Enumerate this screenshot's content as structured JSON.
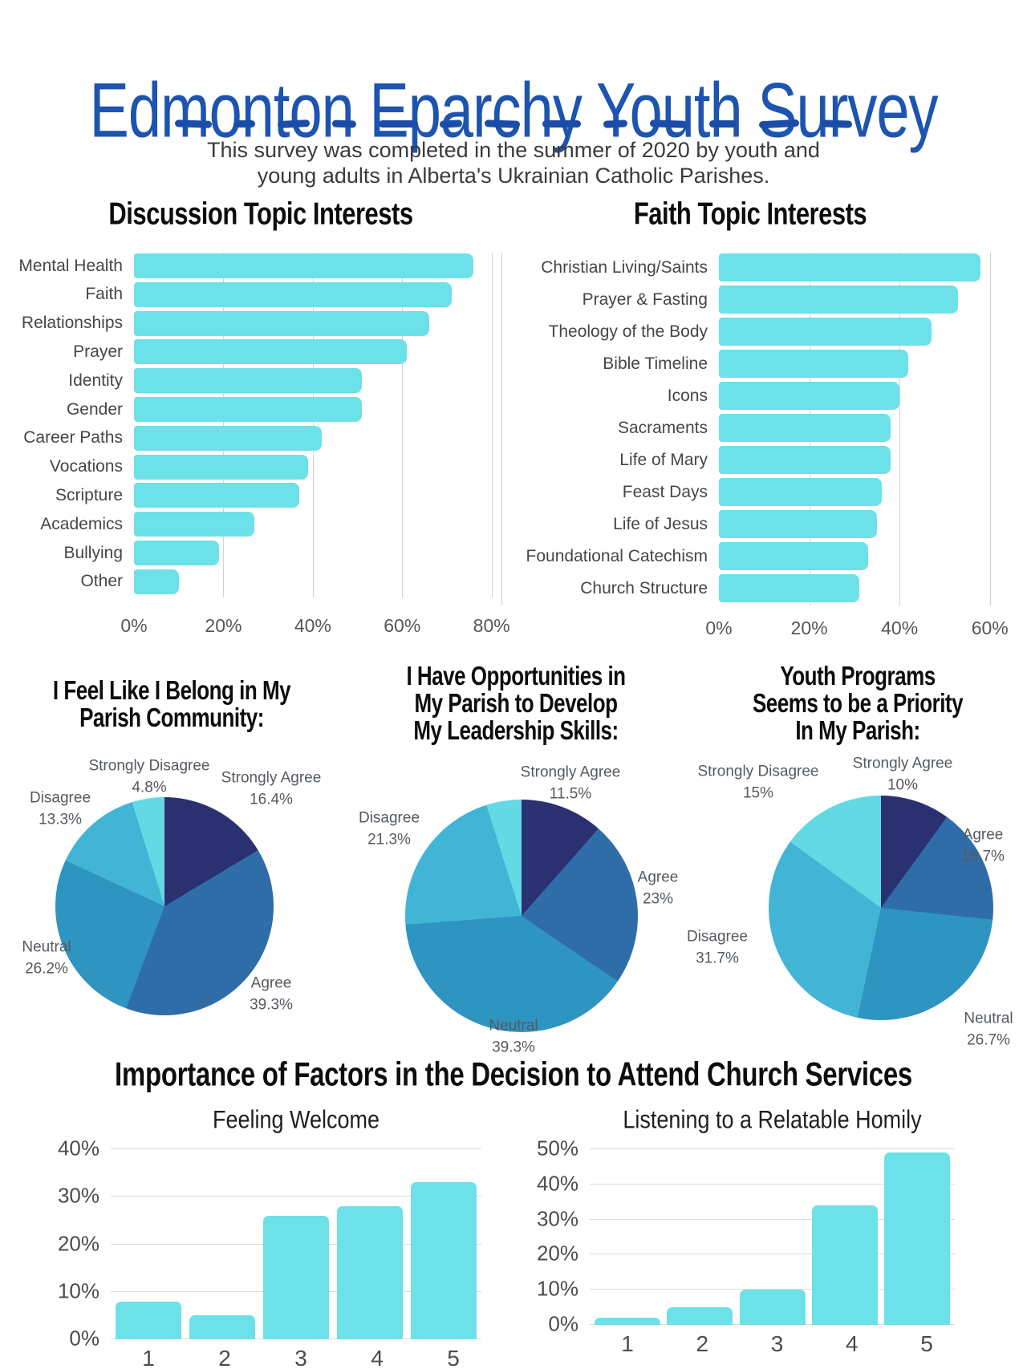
{
  "header": {
    "title": "Edmonton Eparchy Youth Survey",
    "subtitle_lines": [
      "This survey was completed in the summer of 2020 by youth and",
      "young adults in Alberta's Ukrainian Catholic Parishes."
    ]
  },
  "bottom_section_heading": "Importance of Factors in the Decision to Attend Church Services",
  "colors": {
    "title_blue": "#1d54b0",
    "dash_blue": "#1b4da8",
    "bar_teal": "#6ce1e7",
    "gridline": "#d2d2d2",
    "pie_palette": {
      "strongly_agree": "#2b3170",
      "agree": "#2f6da8",
      "neutral": "#2e94c0",
      "disagree": "#42b5d7",
      "strongly_disagree": "#63dae3"
    }
  },
  "chart_data": [
    {
      "type": "bar",
      "orientation": "horizontal",
      "title": "Discussion Topic Interests",
      "unit": "%",
      "categories": [
        "Mental Health",
        "Faith",
        "Relationships",
        "Prayer",
        "Identity",
        "Gender",
        "Career Paths",
        "Vocations",
        "Scripture",
        "Academics",
        "Bullying",
        "Other"
      ],
      "values": [
        76,
        71,
        66,
        61,
        51,
        51,
        42,
        39,
        37,
        27,
        19,
        10
      ],
      "axis_max": 84,
      "axis_ticks": [
        {
          "label": "0%",
          "value": 0
        },
        {
          "label": "20%",
          "value": 20
        },
        {
          "label": "40%",
          "value": 40
        },
        {
          "label": "60%",
          "value": 60
        },
        {
          "label": "80%",
          "value": 80
        }
      ],
      "grid": true,
      "legend": "none"
    },
    {
      "type": "bar",
      "orientation": "horizontal",
      "title": "Faith Topic Interests",
      "unit": "%",
      "categories": [
        "Christian Living/Saints",
        "Prayer & Fasting",
        "Theology of the Body",
        "Bible Timeline",
        "Icons",
        "Sacraments",
        "Life of Mary",
        "Feast Days",
        "Life of Jesus",
        "Foundational Catechism",
        "Church Structure"
      ],
      "values": [
        58,
        53,
        47,
        42,
        40,
        38,
        38,
        36,
        35,
        33,
        31
      ],
      "axis_max": 62,
      "axis_ticks": [
        {
          "label": "0%",
          "value": 0
        },
        {
          "label": "20%",
          "value": 20
        },
        {
          "label": "40%",
          "value": 40
        },
        {
          "label": "60%",
          "value": 60
        }
      ],
      "grid": true,
      "legend": "none"
    },
    {
      "type": "pie",
      "title_lines": [
        "I Feel Like I Belong in My",
        "Parish Community:"
      ],
      "slices": [
        {
          "label": "Strongly Agree",
          "display": "16.4%",
          "value": 16.4,
          "color": "strongly_agree",
          "show_label": true,
          "label_offset": [
            133,
            -146
          ]
        },
        {
          "label": "Agree",
          "display": "39.3%",
          "value": 39.3,
          "color": "agree",
          "show_label": true,
          "label_offset": [
            133,
            110
          ]
        },
        {
          "label": "Neutral",
          "display": "26.2%",
          "value": 26.2,
          "color": "neutral",
          "show_label": true,
          "label_offset": [
            -147,
            65
          ]
        },
        {
          "label": "Disagree",
          "display": "13.3%",
          "value": 13.3,
          "color": "disagree",
          "show_label": true,
          "label_offset": [
            -130,
            -121
          ]
        },
        {
          "label": "Strongly Disagree",
          "display": "4.8%",
          "value": 4.8,
          "color": "strongly_disagree",
          "show_label": true,
          "label_offset": [
            -19,
            -161
          ]
        }
      ]
    },
    {
      "type": "pie",
      "title_lines": [
        "I Have Opportunities in",
        "My Parish to Develop",
        "My Leadership Skills:"
      ],
      "slices": [
        {
          "label": "Strongly Agree",
          "display": "11.5%",
          "value": 11.5,
          "color": "strongly_agree",
          "show_label": true,
          "label_offset": [
            61,
            -165
          ]
        },
        {
          "label": "Agree",
          "display": "23%",
          "value": 23,
          "color": "agree",
          "show_label": true,
          "label_offset": [
            170,
            -34
          ]
        },
        {
          "label": "Neutral",
          "display": "39.3%",
          "value": 39.3,
          "color": "neutral",
          "show_label": true,
          "label_offset": [
            -10,
            151
          ]
        },
        {
          "label": "Disagree",
          "display": "21.3%",
          "value": 21.3,
          "color": "disagree",
          "show_label": true,
          "label_offset": [
            -165,
            -108
          ]
        },
        {
          "label": "Strongly Disagree",
          "display": "4.9%",
          "value": 4.9,
          "color": "strongly_disagree",
          "show_label": false,
          "label_offset": [
            0,
            0
          ]
        }
      ]
    },
    {
      "type": "pie",
      "title_lines": [
        "Youth Programs",
        "Seems to be a Priority",
        "In My Parish:"
      ],
      "slices": [
        {
          "label": "Strongly Agree",
          "display": "10%",
          "value": 10,
          "color": "strongly_agree",
          "show_label": true,
          "label_offset": [
            27,
            -166
          ]
        },
        {
          "label": "Agree",
          "display": "16.7%",
          "value": 16.7,
          "color": "agree",
          "show_label": true,
          "label_offset": [
            127,
            -77
          ]
        },
        {
          "label": "Neutral",
          "display": "26.7%",
          "value": 26.7,
          "color": "neutral",
          "show_label": true,
          "label_offset": [
            134,
            152
          ]
        },
        {
          "label": "Disagree",
          "display": "31.7%",
          "value": 31.7,
          "color": "disagree",
          "show_label": true,
          "label_offset": [
            -204,
            50
          ]
        },
        {
          "label": "Strongly Disagree",
          "display": "15%",
          "value": 15,
          "color": "strongly_disagree",
          "show_label": true,
          "label_offset": [
            -153,
            -156
          ]
        }
      ]
    },
    {
      "type": "bar",
      "orientation": "vertical",
      "title": "Feeling Welcome",
      "unit": "%",
      "categories": [
        "1",
        "2",
        "3",
        "4",
        "5"
      ],
      "values": [
        8,
        5,
        26,
        28,
        33
      ],
      "axis_max": 40,
      "axis_ticks": [
        {
          "label": "0%",
          "value": 0
        },
        {
          "label": "10%",
          "value": 10
        },
        {
          "label": "20%",
          "value": 20
        },
        {
          "label": "30%",
          "value": 30
        },
        {
          "label": "40%",
          "value": 40
        }
      ],
      "grid": true,
      "legend": "none"
    },
    {
      "type": "bar",
      "orientation": "vertical",
      "title": "Listening to a Relatable Homily",
      "unit": "%",
      "categories": [
        "1",
        "2",
        "3",
        "4",
        "5"
      ],
      "values": [
        2,
        5,
        10,
        34,
        49
      ],
      "axis_max": 50,
      "axis_ticks": [
        {
          "label": "0%",
          "value": 0
        },
        {
          "label": "10%",
          "value": 10
        },
        {
          "label": "20%",
          "value": 20
        },
        {
          "label": "30%",
          "value": 30
        },
        {
          "label": "40%",
          "value": 40
        },
        {
          "label": "50%",
          "value": 50
        }
      ],
      "grid": true,
      "legend": "none"
    }
  ]
}
